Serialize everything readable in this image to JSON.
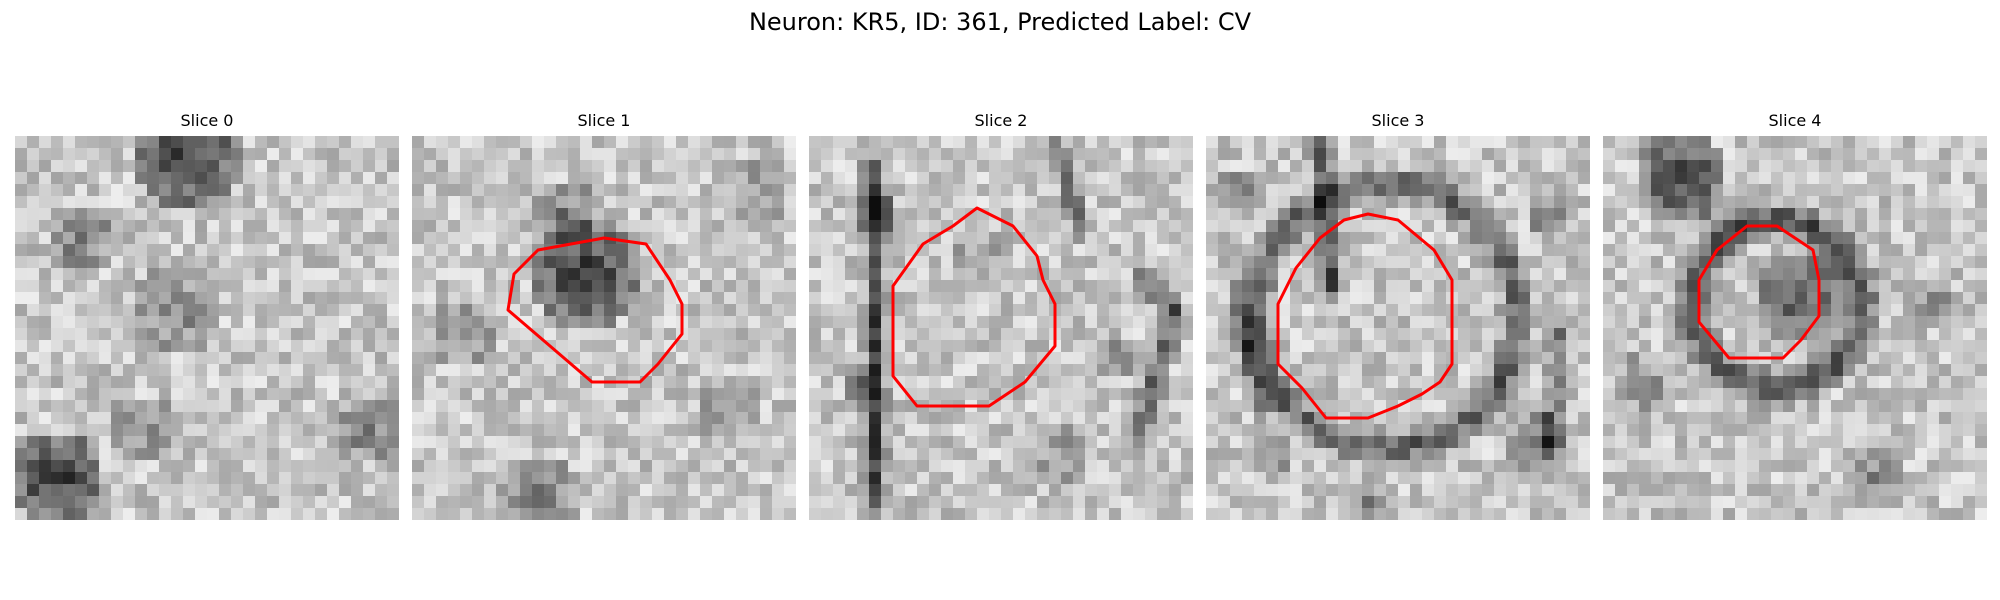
{
  "figure": {
    "title": "Neuron: KR5, ID: 361, Predicted Label: CV",
    "contour_color": "#ff0000",
    "slices": [
      {
        "title": "Slice 0",
        "has_contour": false
      },
      {
        "title": "Slice 1",
        "has_contour": true
      },
      {
        "title": "Slice 2",
        "has_contour": true
      },
      {
        "title": "Slice 3",
        "has_contour": true
      },
      {
        "title": "Slice 4",
        "has_contour": true
      }
    ]
  }
}
